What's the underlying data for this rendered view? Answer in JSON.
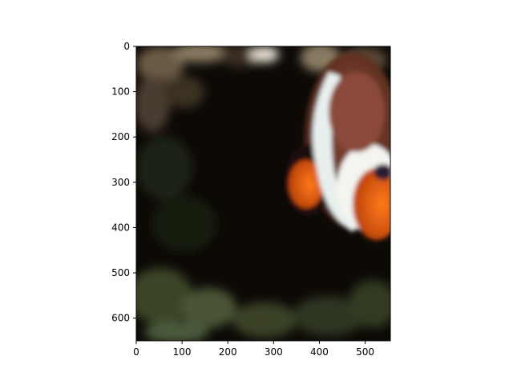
{
  "chart_data": {
    "type": "image",
    "title": "",
    "xlabel": "",
    "ylabel": "",
    "xlim": [
      0,
      555
    ],
    "ylim": [
      650,
      0
    ],
    "xticks": [
      0,
      100,
      200,
      300,
      400,
      500
    ],
    "yticks": [
      0,
      100,
      200,
      300,
      400,
      500,
      600
    ],
    "grid": false,
    "image_subject": "clownfish-among-anemone"
  }
}
